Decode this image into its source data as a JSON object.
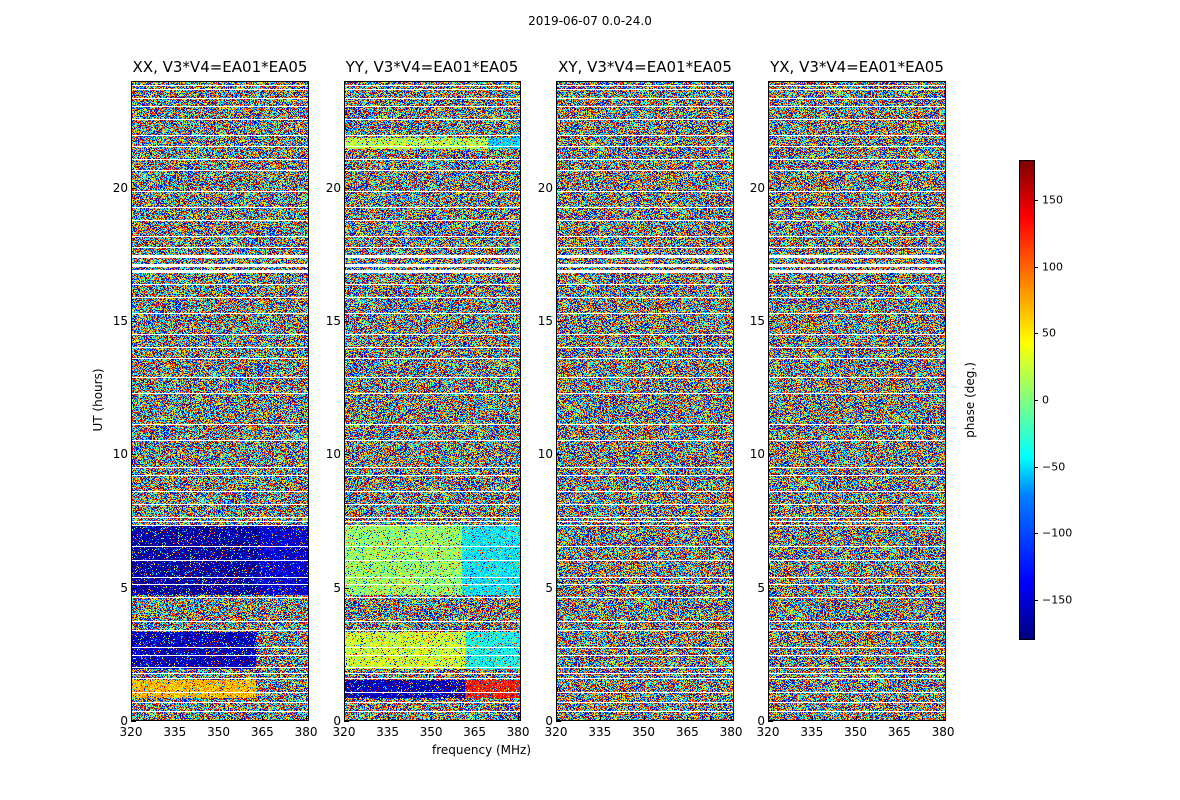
{
  "chart_data": {
    "type": "heatmap",
    "title": "2019-06-07 0.0-24.0",
    "xlabel": "frequency (MHz)",
    "ylabel": "UT (hours)",
    "xlim": [
      320,
      381
    ],
    "ylim": [
      0,
      24
    ],
    "x_ticks": [
      "320",
      "335",
      "350",
      "365",
      "380"
    ],
    "x_tick_values": [
      320,
      335,
      350,
      365,
      380
    ],
    "y_ticks": [
      "0",
      "5",
      "10",
      "15",
      "20"
    ],
    "y_tick_values": [
      0,
      5,
      10,
      15,
      20
    ],
    "colorbar": {
      "label": "phase (deg.)",
      "range": [
        -180,
        180
      ],
      "ticks": [
        "150",
        "100",
        "50",
        "0",
        "−50",
        "−100",
        "−150"
      ],
      "tick_values": [
        150,
        100,
        50,
        0,
        -50,
        -100,
        -150
      ],
      "colormap": "jet"
    },
    "panels": [
      {
        "title": "XX, V3*V4=EA01*EA05",
        "coherent": [
          {
            "t": [
              0.8,
              1.5
            ],
            "f_split": 363,
            "low_phase": 70,
            "high_phase": null
          },
          {
            "t": [
              1.9,
              3.3
            ],
            "f_split": 363,
            "low_phase": -160,
            "high_phase": null
          },
          {
            "t": [
              4.7,
              7.3
            ],
            "f_split": 364,
            "low_phase": -170,
            "high_phase": -150
          }
        ]
      },
      {
        "title": "YY, V3*V4=EA01*EA05",
        "coherent": [
          {
            "t": [
              0.8,
              1.5
            ],
            "f_split": 362,
            "low_phase": -160,
            "high_phase": 130
          },
          {
            "t": [
              1.9,
              3.3
            ],
            "f_split": 362,
            "low_phase": 30,
            "high_phase": -40
          },
          {
            "t": [
              4.7,
              7.3
            ],
            "f_split": 361,
            "low_phase": 10,
            "high_phase": -50
          },
          {
            "t": [
              21.5,
              21.9
            ],
            "f_split": 370,
            "low_phase": 20,
            "high_phase": -60
          }
        ]
      },
      {
        "title": "XY, V3*V4=EA01*EA05",
        "coherent": []
      },
      {
        "title": "YX, V3*V4=EA01*EA05",
        "coherent": []
      }
    ],
    "flagged_ut_hours": [
      0.3,
      0.65,
      1.0,
      1.55,
      1.75,
      1.95,
      2.4,
      2.7,
      3.35,
      3.7,
      4.6,
      5.1,
      5.35,
      6.0,
      6.5,
      7.3,
      7.45,
      7.6,
      8.1,
      8.6,
      9.2,
      9.5,
      10.5,
      11.1,
      12.3,
      12.9,
      13.6,
      14.0,
      14.5,
      15.3,
      15.9,
      16.4,
      16.9,
      17.15,
      17.5,
      17.8,
      18.2,
      18.8,
      19.3,
      19.9,
      20.7,
      21.1,
      21.6,
      22.0,
      22.6,
      23.1,
      23.4,
      23.75,
      23.9
    ]
  }
}
